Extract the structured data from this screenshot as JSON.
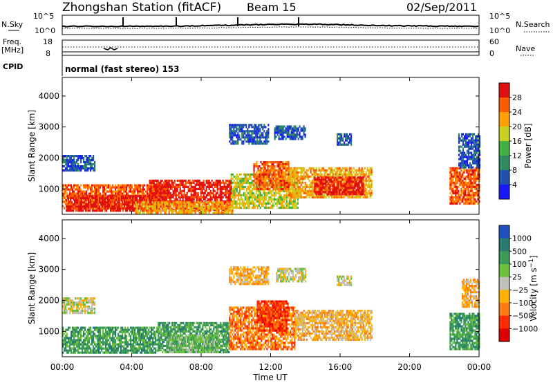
{
  "header": {
    "station": "Zhongshan Station (fitACF)",
    "beam": "Beam 15",
    "date": "02/Sep/2011"
  },
  "strip_labels": {
    "nsky": "N.Sky",
    "nsearch": "N.Search",
    "freq_top": "Freq.",
    "freq_unit": "[MHz]",
    "nave": "Nave",
    "cpid": "CPID",
    "cpid_value": "normal (fast stereo) 153",
    "noise_tick_hi": "10^5",
    "noise_tick_lo": "10^0",
    "freq_tick_hi": "18",
    "freq_tick_lo": "8",
    "nave_tick_hi": "60",
    "nave_tick_lo": "0"
  },
  "chart_data": [
    {
      "type": "heatmap",
      "name": "power",
      "ylabel": "Slant Range [km]",
      "xlabel": "Time UT",
      "x_ticks": [
        "00:00",
        "04:00",
        "08:00",
        "12:00",
        "16:00",
        "20:00",
        "00:00"
      ],
      "x_range_hours": [
        0,
        24
      ],
      "y_ticks": [
        1000,
        2000,
        3000,
        4000
      ],
      "ylim": [
        180,
        4600
      ],
      "colorbar_label": "Power [dB]",
      "colorbar_ticks": [
        "4",
        "8",
        "12",
        "16",
        "20",
        "24",
        "28"
      ],
      "colorbar_colors": [
        "#1818ff",
        "#2050b0",
        "#2f8a60",
        "#40b040",
        "#c8d020",
        "#ffa000",
        "#ff5a00",
        "#e01010"
      ],
      "regions": [
        {
          "t0": 0.0,
          "t1": 1.9,
          "r0": 1600,
          "r1": 2100,
          "level": 1
        },
        {
          "t0": 0.0,
          "t1": 6.2,
          "r0": 400,
          "r1": 1150,
          "level": 6
        },
        {
          "t0": 0.2,
          "t1": 5.8,
          "r0": 300,
          "r1": 800,
          "level": 7
        },
        {
          "t0": 5.0,
          "t1": 9.7,
          "r0": 350,
          "r1": 1300,
          "level": 7
        },
        {
          "t0": 4.2,
          "t1": 9.8,
          "r0": 200,
          "r1": 600,
          "level": 5
        },
        {
          "t0": 9.7,
          "t1": 13.6,
          "r0": 400,
          "r1": 1500,
          "level": 4
        },
        {
          "t0": 11.0,
          "t1": 13.0,
          "r0": 1000,
          "r1": 1900,
          "level": 6
        },
        {
          "t0": 9.6,
          "t1": 11.9,
          "r0": 2450,
          "r1": 3100,
          "level": 1
        },
        {
          "t0": 12.2,
          "t1": 14.0,
          "r0": 2600,
          "r1": 3050,
          "level": 1
        },
        {
          "t0": 13.0,
          "t1": 17.8,
          "r0": 700,
          "r1": 1700,
          "level": 5
        },
        {
          "t0": 14.5,
          "t1": 17.3,
          "r0": 800,
          "r1": 1400,
          "level": 7
        },
        {
          "t0": 15.8,
          "t1": 16.6,
          "r0": 2400,
          "r1": 2800,
          "level": 1
        },
        {
          "t0": 22.3,
          "t1": 24.0,
          "r0": 500,
          "r1": 1700,
          "level": 6
        },
        {
          "t0": 22.8,
          "t1": 24.0,
          "r0": 1700,
          "r1": 2800,
          "level": 1
        }
      ]
    },
    {
      "type": "heatmap",
      "name": "velocity",
      "ylabel": "Slant Range [km]",
      "xlabel": "Time UT",
      "x_ticks": [
        "00:00",
        "04:00",
        "08:00",
        "12:00",
        "16:00",
        "20:00",
        "00:00"
      ],
      "x_range_hours": [
        0,
        24
      ],
      "y_ticks": [
        1000,
        2000,
        3000,
        4000
      ],
      "ylim": [
        180,
        4600
      ],
      "colorbar_label": "Velocity [m s^-1]",
      "colorbar_ticks": [
        "1000",
        "500",
        "100",
        "25",
        "−25",
        "−100",
        "−500",
        "−1000"
      ],
      "colorbar_colors": [
        "#2050c0",
        "#2a7a70",
        "#3a9a58",
        "#6cc03c",
        "#c0c0b8",
        "#ffb000",
        "#ff7a10",
        "#ff2a00",
        "#e00000"
      ],
      "regions": [
        {
          "t0": 0.0,
          "t1": 1.9,
          "r0": 1600,
          "r1": 2100,
          "level": 4
        },
        {
          "t0": 0.0,
          "t1": 5.5,
          "r0": 300,
          "r1": 1150,
          "level": 2
        },
        {
          "t0": 5.5,
          "t1": 9.6,
          "r0": 300,
          "r1": 1300,
          "level": 2
        },
        {
          "t0": 6.0,
          "t1": 9.0,
          "r0": 300,
          "r1": 900,
          "level": 3
        },
        {
          "t0": 9.6,
          "t1": 13.4,
          "r0": 400,
          "r1": 1800,
          "level": 6
        },
        {
          "t0": 11.2,
          "t1": 13.0,
          "r0": 1000,
          "r1": 2000,
          "level": 7
        },
        {
          "t0": 9.6,
          "t1": 11.9,
          "r0": 2500,
          "r1": 3100,
          "level": 5
        },
        {
          "t0": 12.3,
          "t1": 14.0,
          "r0": 2600,
          "r1": 3050,
          "level": 4
        },
        {
          "t0": 13.4,
          "t1": 17.8,
          "r0": 700,
          "r1": 1700,
          "level": 5
        },
        {
          "t0": 15.8,
          "t1": 16.6,
          "r0": 2500,
          "r1": 2800,
          "level": 4
        },
        {
          "t0": 22.3,
          "t1": 24.0,
          "r0": 400,
          "r1": 1600,
          "level": 2
        },
        {
          "t0": 23.0,
          "t1": 24.0,
          "r0": 1800,
          "r1": 2700,
          "level": 5
        }
      ]
    }
  ]
}
